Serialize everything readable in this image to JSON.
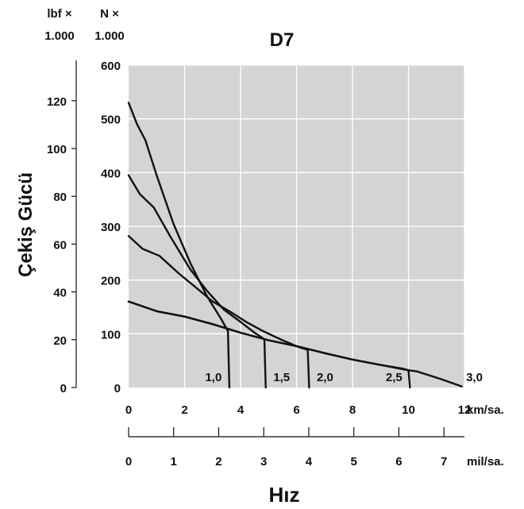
{
  "chart_data": {
    "type": "line",
    "title": "D7",
    "ylabel": "Çekiş Gücü",
    "xlabel": "Hız",
    "x_unit": "km/sa.",
    "x2_unit": "mil/sa.",
    "y_unit_right": [
      "N ×",
      "1.000"
    ],
    "y_unit_left": [
      "lbf ×",
      "1.000"
    ],
    "xlim": [
      0,
      12
    ],
    "ylim": [
      0,
      600
    ],
    "x2lim": [
      0,
      7.456
    ],
    "y2lim": [
      0,
      134.9
    ],
    "x_ticks": [
      0,
      2,
      4,
      6,
      8,
      10,
      12
    ],
    "y_ticks": [
      0,
      100,
      200,
      300,
      400,
      500,
      600
    ],
    "x2_ticks": [
      0,
      1,
      2,
      3,
      4,
      5,
      6,
      7
    ],
    "y2_ticks": [
      0,
      20,
      40,
      60,
      80,
      100,
      120
    ],
    "grid": true,
    "series": [
      {
        "name": "1,0",
        "points": [
          [
            0,
            530
          ],
          [
            0.3,
            490
          ],
          [
            0.6,
            460
          ],
          [
            1.0,
            395
          ],
          [
            1.6,
            305
          ],
          [
            2.2,
            232
          ],
          [
            2.8,
            170
          ],
          [
            3.3,
            128
          ],
          [
            3.55,
            105
          ],
          [
            3.6,
            0
          ]
        ]
      },
      {
        "name": "1,5",
        "points": [
          [
            0,
            395
          ],
          [
            0.4,
            360
          ],
          [
            0.9,
            335
          ],
          [
            1.5,
            280
          ],
          [
            2.2,
            220
          ],
          [
            2.8,
            180
          ],
          [
            3.4,
            145
          ],
          [
            4.0,
            122
          ],
          [
            4.5,
            102
          ],
          [
            4.85,
            90
          ],
          [
            4.9,
            0
          ]
        ]
      },
      {
        "name": "2,0",
        "points": [
          [
            0,
            282
          ],
          [
            0.5,
            258
          ],
          [
            1.1,
            245
          ],
          [
            1.8,
            212
          ],
          [
            2.5,
            182
          ],
          [
            3.0,
            160
          ],
          [
            3.6,
            142
          ],
          [
            4.2,
            122
          ],
          [
            4.8,
            105
          ],
          [
            5.5,
            88
          ],
          [
            6.1,
            75
          ],
          [
            6.4,
            70
          ],
          [
            6.45,
            0
          ]
        ]
      },
      {
        "name": "2,5",
        "points": [
          [
            0,
            160
          ],
          [
            1.0,
            142
          ],
          [
            2.0,
            132
          ],
          [
            3.0,
            118
          ],
          [
            4.0,
            102
          ],
          [
            5.0,
            88
          ],
          [
            6.0,
            77
          ],
          [
            7.0,
            64
          ],
          [
            8.0,
            52
          ],
          [
            9.0,
            42
          ],
          [
            9.8,
            35
          ],
          [
            10.0,
            32
          ],
          [
            10.05,
            0
          ]
        ]
      },
      {
        "name": "3,0",
        "points": [
          [
            0,
            160
          ],
          [
            1.0,
            142
          ],
          [
            2.0,
            132
          ],
          [
            3.0,
            118
          ],
          [
            4.0,
            102
          ],
          [
            5.0,
            88
          ],
          [
            6.0,
            77
          ],
          [
            7.0,
            64
          ],
          [
            8.0,
            52
          ],
          [
            9.0,
            42
          ],
          [
            10.0,
            32
          ],
          [
            10.3,
            30
          ],
          [
            11.2,
            15
          ],
          [
            11.9,
            2
          ]
        ]
      }
    ]
  }
}
